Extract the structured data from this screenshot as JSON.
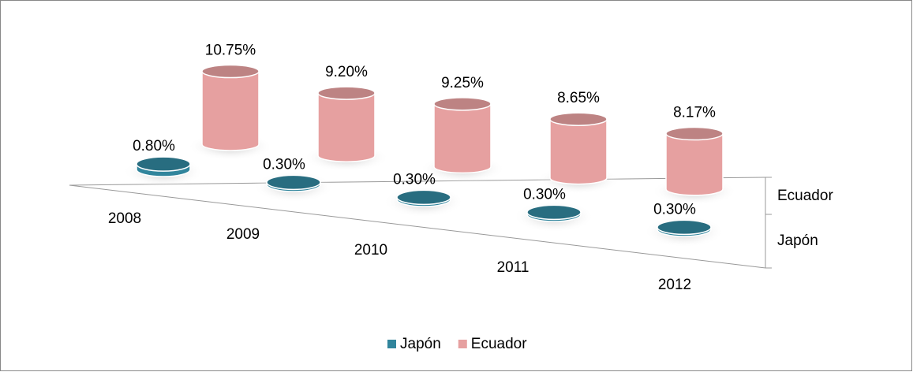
{
  "chart_data": {
    "type": "cylinder3d",
    "categories": [
      "2008",
      "2009",
      "2010",
      "2011",
      "2012"
    ],
    "series": [
      {
        "name": "Japón",
        "color": "#31859c",
        "values": [
          0.8,
          0.3,
          0.3,
          0.3,
          0.3
        ],
        "value_labels": [
          "0.80%",
          "0.30%",
          "0.30%",
          "0.30%",
          "0.30%"
        ]
      },
      {
        "name": "Ecuador",
        "color": "#e6a0a0",
        "values": [
          10.75,
          9.2,
          9.25,
          8.65,
          8.17
        ],
        "value_labels": [
          "10.75%",
          "9.20%",
          "9.25%",
          "8.65%",
          "8.17%"
        ]
      }
    ],
    "legend": "bottom"
  }
}
